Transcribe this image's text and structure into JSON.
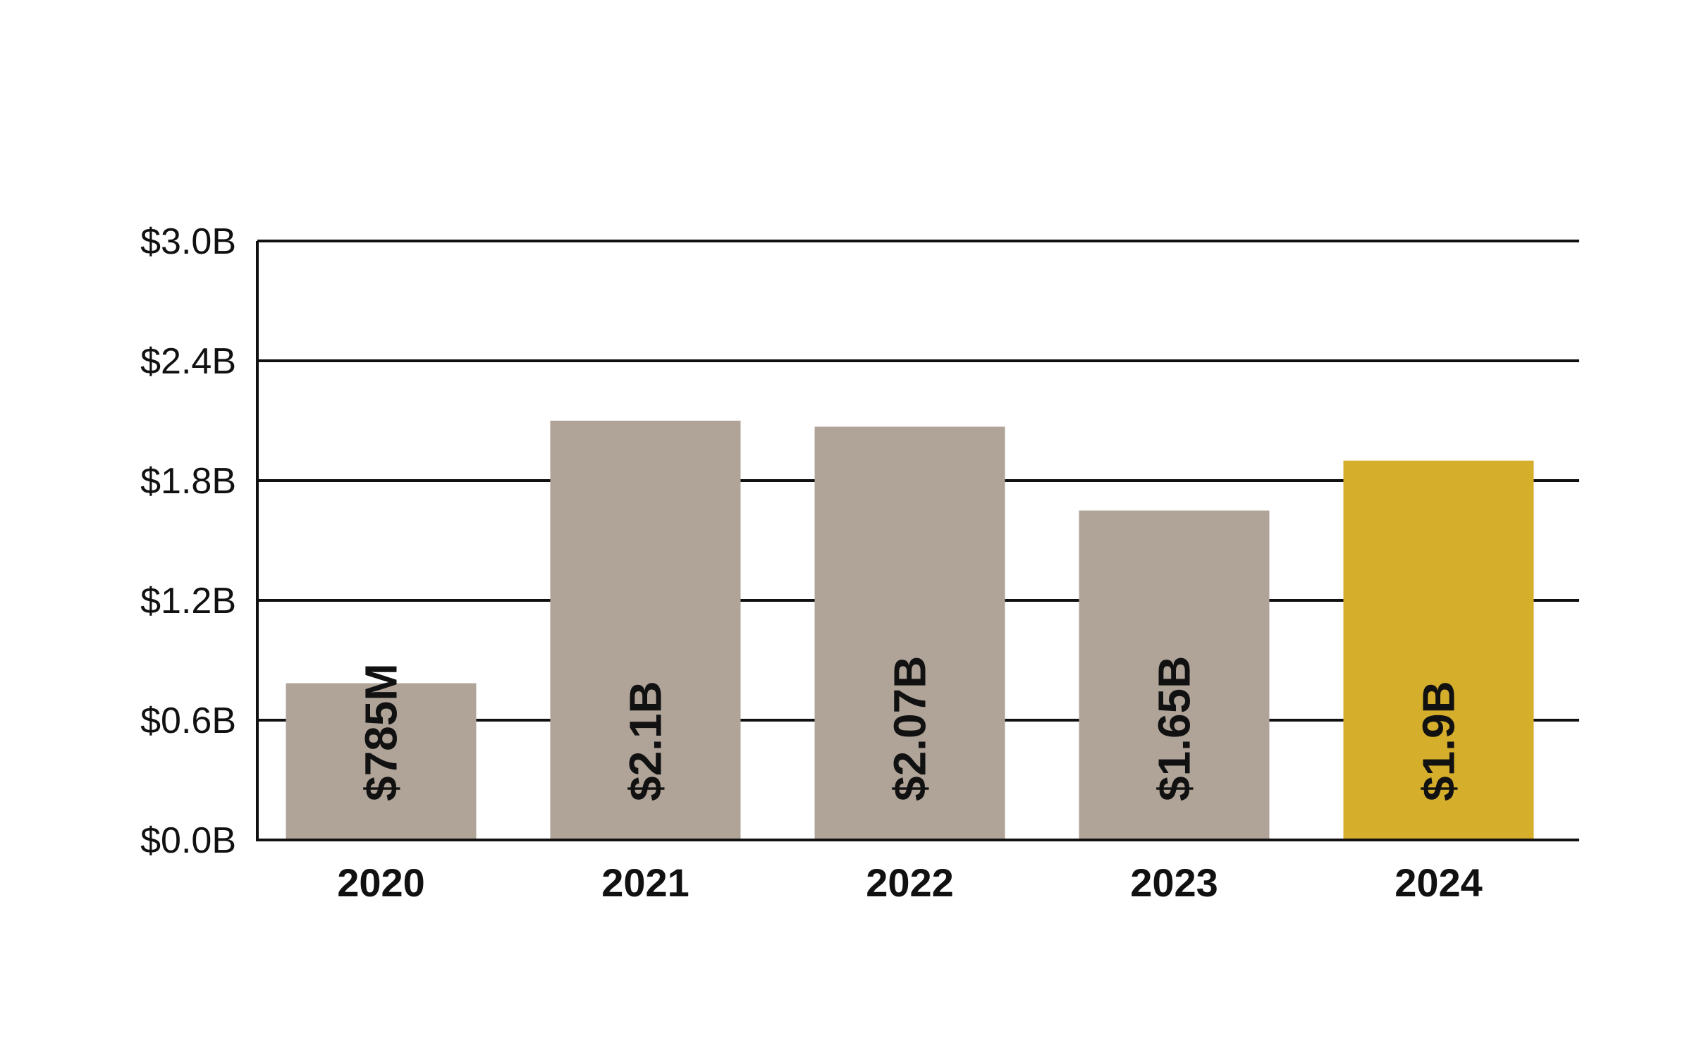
{
  "chart_data": {
    "type": "bar",
    "categories": [
      "2020",
      "2021",
      "2022",
      "2023",
      "2024"
    ],
    "values": [
      0.785,
      2.1,
      2.07,
      1.65,
      1.9
    ],
    "data_labels": [
      "$785M",
      "$2.1B",
      "$2.07B",
      "$1.65B",
      "$1.9B"
    ],
    "ylim": [
      0,
      3.0
    ],
    "yticks": [
      0,
      0.6,
      1.2,
      1.8,
      2.4,
      3.0
    ],
    "ytick_labels": [
      "$0.0B",
      "$0.6B",
      "$1.2B",
      "$1.8B",
      "$2.4B",
      "$3.0B"
    ],
    "grid": true,
    "colors": {
      "bar_default": "#b0a499",
      "bar_highlight": "#d5ae2c",
      "grid": "#111111"
    },
    "highlight_index": 4
  }
}
